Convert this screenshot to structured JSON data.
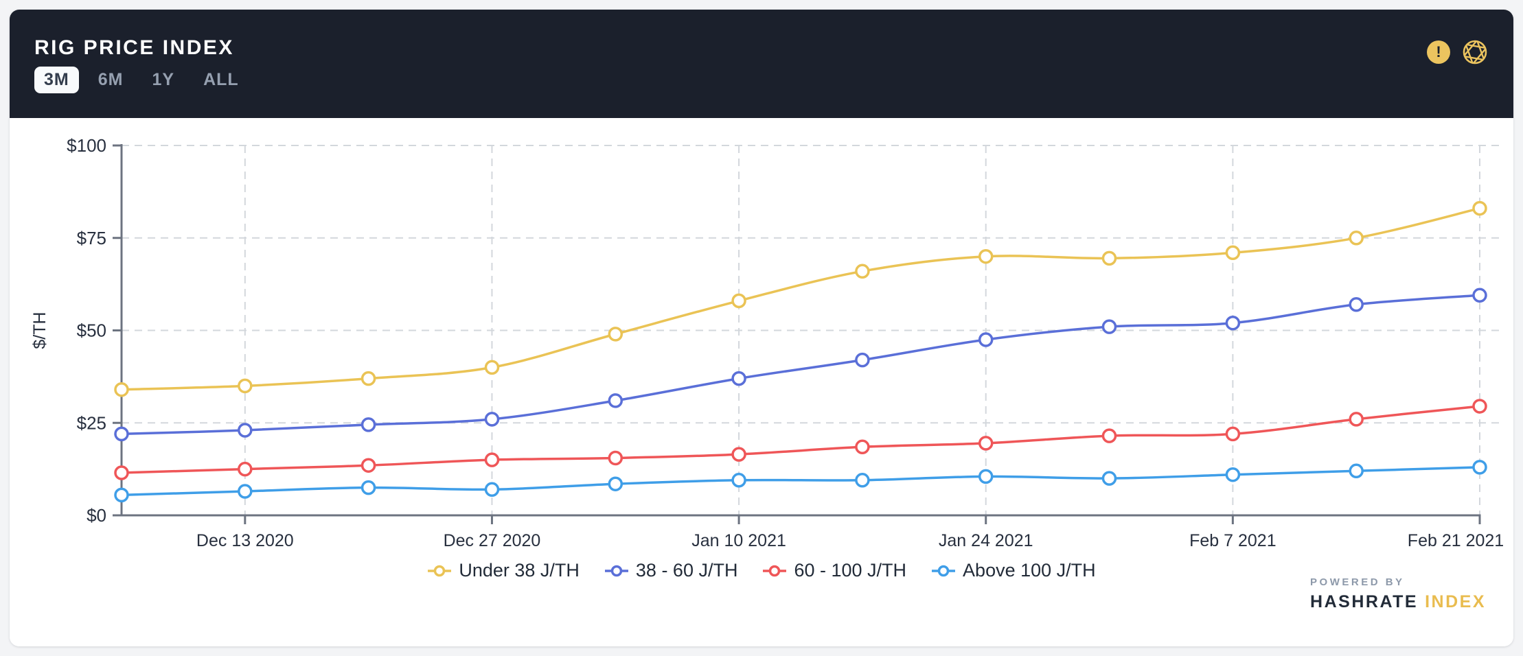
{
  "header": {
    "title": "RIG PRICE INDEX",
    "ranges": [
      {
        "label": "3M",
        "active": true
      },
      {
        "label": "6M",
        "active": false
      },
      {
        "label": "1Y",
        "active": false
      },
      {
        "label": "ALL",
        "active": false
      }
    ],
    "warning_glyph": "!",
    "icons": [
      "warning-icon",
      "aperture-logo-icon"
    ],
    "colors": {
      "header_bg": "#1B202C",
      "active_btn_bg": "#F8FAFC",
      "active_btn_text": "#333D4D",
      "inactive_btn_text": "#96A0B0",
      "icon_accent": "#ECC45F"
    }
  },
  "chart_data": {
    "type": "line",
    "x": [
      "Dec 6 2020",
      "Dec 13 2020",
      "Dec 20 2020",
      "Dec 27 2020",
      "Jan 3 2021",
      "Jan 10 2021",
      "Jan 17 2021",
      "Jan 24 2021",
      "Jan 31 2021",
      "Feb 7 2021",
      "Feb 14 2021",
      "Feb 21 2021"
    ],
    "x_tick_labels": [
      "Dec 13 2020",
      "Dec 27 2020",
      "Jan 10 2021",
      "Jan 24 2021",
      "Feb 7 2021",
      "Feb 21 2021"
    ],
    "x_tick_indices": [
      1,
      3,
      5,
      7,
      9,
      11
    ],
    "ylabel": "$/TH",
    "ylim": [
      0,
      100
    ],
    "yticks": [
      0,
      25,
      50,
      75,
      100
    ],
    "ytick_labels": [
      "$0",
      "$25",
      "$50",
      "$75",
      "$100"
    ],
    "grid": "dashed",
    "legend_position": "bottom",
    "series": [
      {
        "name": "Under 38 J/TH",
        "color": "#EAC355",
        "values": [
          34,
          35,
          37,
          40,
          49,
          58,
          66,
          70,
          69.5,
          71,
          75,
          83
        ]
      },
      {
        "name": "38 - 60 J/TH",
        "color": "#5A6FD8",
        "values": [
          22,
          23,
          24.5,
          26,
          31,
          37,
          42,
          47.5,
          51,
          52,
          57,
          59.5
        ]
      },
      {
        "name": "60 - 100 J/TH",
        "color": "#EF5658",
        "values": [
          11.5,
          12.5,
          13.5,
          15,
          15.5,
          16.5,
          18.5,
          19.5,
          21.5,
          22,
          26,
          29.5
        ]
      },
      {
        "name": "Above 100 J/TH",
        "color": "#3F9EE8",
        "values": [
          5.5,
          6.5,
          7.5,
          7,
          8.5,
          9.5,
          9.5,
          10.5,
          10,
          11,
          12,
          13
        ]
      }
    ],
    "style": {
      "grid_color": "#D3D7DC",
      "axis_color": "#6C7380",
      "tick_label_color": "#28303F"
    }
  },
  "footer": {
    "powered_by": "POWERED BY",
    "brand_primary": "HASHRATE",
    "brand_accent": "INDEX"
  }
}
